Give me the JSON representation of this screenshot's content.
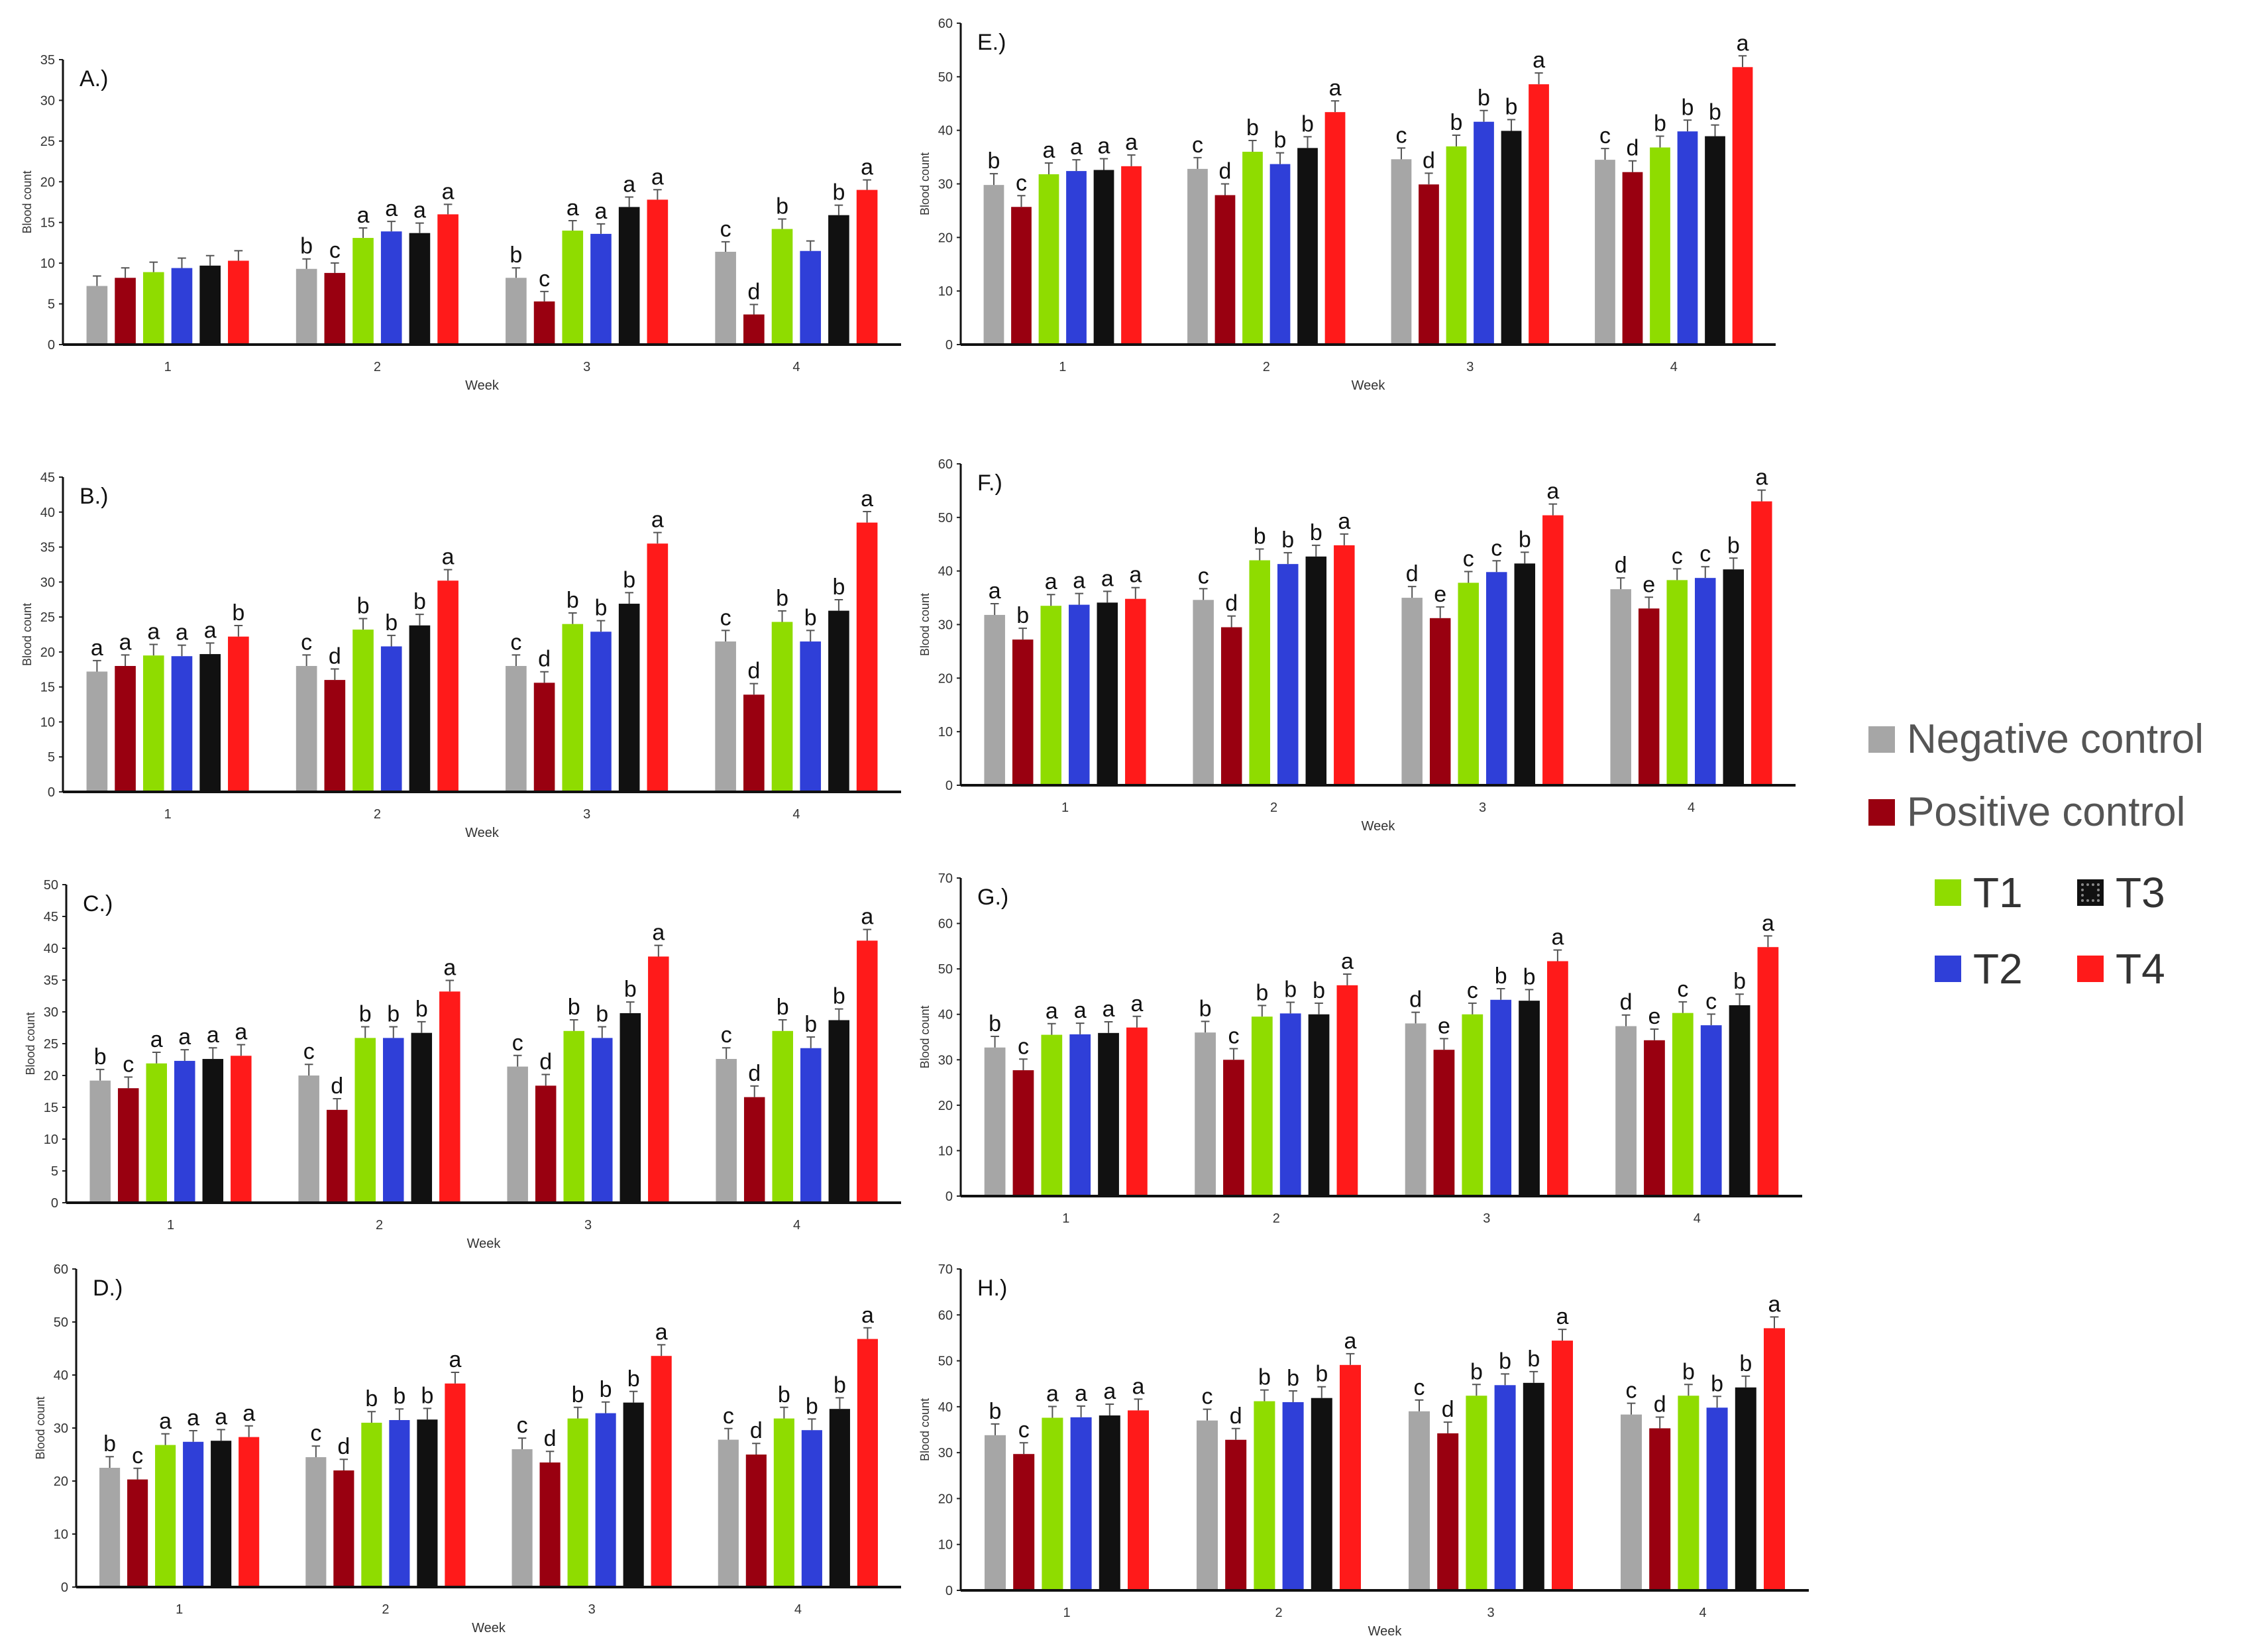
{
  "legend": {
    "items": [
      {
        "key": "neg",
        "label": "Negative control",
        "color": "#a6a6a6"
      },
      {
        "key": "pos",
        "label": "Positive control",
        "color": "#990010"
      },
      {
        "key": "t1",
        "label": "T1",
        "color": "#8fdc00"
      },
      {
        "key": "t2",
        "label": "T2",
        "color": "#2f3fd8"
      },
      {
        "key": "t3",
        "label": "T3",
        "color": "#111111"
      },
      {
        "key": "t4",
        "label": "T4",
        "color": "#ff1a1a"
      }
    ]
  },
  "chart_data": [
    {
      "type": "bar",
      "title": "A.)",
      "xlabel": "Week",
      "ylabel": "Blood count",
      "ylim": [
        0,
        35
      ],
      "yticks": [
        "0",
        "5",
        "10",
        "15",
        "20",
        "25",
        "30",
        "35"
      ],
      "categories": [
        "1",
        "2",
        "3",
        "4"
      ],
      "series": [
        {
          "name": "Negative control",
          "values": [
            7.2,
            9.3,
            8.2,
            11.4
          ],
          "labels": [
            "",
            "b",
            "b",
            "c"
          ]
        },
        {
          "name": "Positive control",
          "values": [
            8.2,
            8.8,
            5.3,
            3.7
          ],
          "labels": [
            "",
            "c",
            "c",
            "d"
          ]
        },
        {
          "name": "T1",
          "values": [
            8.9,
            13.1,
            14.0,
            14.2
          ],
          "labels": [
            "",
            "a",
            "a",
            "b"
          ]
        },
        {
          "name": "T2",
          "values": [
            9.4,
            13.9,
            13.6,
            11.5
          ],
          "labels": [
            "",
            "a",
            "a",
            ""
          ]
        },
        {
          "name": "T3",
          "values": [
            9.7,
            13.7,
            16.9,
            15.9
          ],
          "labels": [
            "",
            "a",
            "a",
            "b"
          ]
        },
        {
          "name": "T4",
          "values": [
            10.3,
            16.0,
            17.8,
            19.0
          ],
          "labels": [
            "",
            "a",
            "a",
            "a"
          ]
        }
      ]
    },
    {
      "type": "bar",
      "title": "B.)",
      "xlabel": "Week",
      "ylabel": "Blood count",
      "ylim": [
        0,
        45
      ],
      "yticks": [
        "0",
        "5",
        "10",
        "15",
        "20",
        "25",
        "30",
        "35",
        "40",
        "45"
      ],
      "categories": [
        "1",
        "2",
        "3",
        "4"
      ],
      "series": [
        {
          "name": "Negative control",
          "values": [
            17.2,
            18.0,
            18.0,
            21.5
          ],
          "labels": [
            "a",
            "c",
            "c",
            "c"
          ]
        },
        {
          "name": "Positive control",
          "values": [
            18.0,
            16.0,
            15.6,
            13.9
          ],
          "labels": [
            "a",
            "d",
            "d",
            "d"
          ]
        },
        {
          "name": "T1",
          "values": [
            19.5,
            23.2,
            24.0,
            24.3
          ],
          "labels": [
            "a",
            "b",
            "b",
            "b"
          ]
        },
        {
          "name": "T2",
          "values": [
            19.4,
            20.8,
            22.9,
            21.5
          ],
          "labels": [
            "a",
            "b",
            "b",
            "b"
          ]
        },
        {
          "name": "T3",
          "values": [
            19.7,
            23.8,
            26.9,
            25.9
          ],
          "labels": [
            "a",
            "b",
            "b",
            "b"
          ]
        },
        {
          "name": "T4",
          "values": [
            22.2,
            30.2,
            35.5,
            38.5
          ],
          "labels": [
            "b",
            "a",
            "a",
            "a"
          ]
        }
      ]
    },
    {
      "type": "bar",
      "title": "C.)",
      "xlabel": "Week",
      "ylabel": "Blood count",
      "ylim": [
        0,
        50
      ],
      "yticks": [
        "0",
        "5",
        "10",
        "15",
        "20",
        "25",
        "30",
        "35",
        "40",
        "45",
        "50"
      ],
      "categories": [
        "1",
        "2",
        "3",
        "4"
      ],
      "series": [
        {
          "name": "Negative control",
          "values": [
            19.2,
            20.0,
            21.4,
            22.6
          ],
          "labels": [
            "b",
            "c",
            "c",
            "c"
          ]
        },
        {
          "name": "Positive control",
          "values": [
            18.0,
            14.6,
            18.4,
            16.6
          ],
          "labels": [
            "c",
            "d",
            "d",
            "d"
          ]
        },
        {
          "name": "T1",
          "values": [
            21.9,
            25.9,
            27.0,
            27.0
          ],
          "labels": [
            "a",
            "b",
            "b",
            "b"
          ]
        },
        {
          "name": "T2",
          "values": [
            22.3,
            25.9,
            25.9,
            24.3
          ],
          "labels": [
            "a",
            "b",
            "b",
            "b"
          ]
        },
        {
          "name": "T3",
          "values": [
            22.6,
            26.7,
            29.8,
            28.7
          ],
          "labels": [
            "a",
            "b",
            "b",
            "b"
          ]
        },
        {
          "name": "T4",
          "values": [
            23.1,
            33.2,
            38.7,
            41.2
          ],
          "labels": [
            "a",
            "a",
            "a",
            "a"
          ]
        }
      ]
    },
    {
      "type": "bar",
      "title": "D.)",
      "xlabel": "Week",
      "ylabel": "Blood count",
      "ylim": [
        0,
        60
      ],
      "yticks": [
        "0",
        "10",
        "20",
        "30",
        "40",
        "50",
        "60"
      ],
      "categories": [
        "1",
        "2",
        "3",
        "4"
      ],
      "series": [
        {
          "name": "Negative control",
          "values": [
            22.5,
            24.5,
            26.0,
            27.8
          ],
          "labels": [
            "b",
            "c",
            "c",
            "c"
          ]
        },
        {
          "name": "Positive control",
          "values": [
            20.3,
            22.0,
            23.5,
            25.0
          ],
          "labels": [
            "c",
            "d",
            "d",
            "d"
          ]
        },
        {
          "name": "T1",
          "values": [
            26.8,
            31.0,
            31.8,
            31.8
          ],
          "labels": [
            "a",
            "b",
            "b",
            "b"
          ]
        },
        {
          "name": "T2",
          "values": [
            27.4,
            31.5,
            32.8,
            29.6
          ],
          "labels": [
            "a",
            "b",
            "b",
            "b"
          ]
        },
        {
          "name": "T3",
          "values": [
            27.6,
            31.6,
            34.8,
            33.6
          ],
          "labels": [
            "a",
            "b",
            "b",
            "b"
          ]
        },
        {
          "name": "T4",
          "values": [
            28.3,
            38.4,
            43.6,
            46.8
          ],
          "labels": [
            "a",
            "a",
            "a",
            "a"
          ]
        }
      ]
    },
    {
      "type": "bar",
      "title": "E.)",
      "xlabel": "Week",
      "ylabel": "Blood count",
      "ylim": [
        0,
        60
      ],
      "yticks": [
        "0",
        "10",
        "20",
        "30",
        "40",
        "50",
        "60"
      ],
      "categories": [
        "1",
        "2",
        "3",
        "4"
      ],
      "series": [
        {
          "name": "Negative control",
          "values": [
            29.8,
            32.8,
            34.6,
            34.5
          ],
          "labels": [
            "b",
            "c",
            "c",
            "c"
          ]
        },
        {
          "name": "Positive control",
          "values": [
            25.7,
            27.9,
            29.9,
            32.2
          ],
          "labels": [
            "c",
            "d",
            "d",
            "d"
          ]
        },
        {
          "name": "T1",
          "values": [
            31.8,
            36.0,
            37.0,
            36.8
          ],
          "labels": [
            "a",
            "b",
            "b",
            "b"
          ]
        },
        {
          "name": "T2",
          "values": [
            32.4,
            33.7,
            41.6,
            39.8
          ],
          "labels": [
            "a",
            "b",
            "b",
            "b"
          ]
        },
        {
          "name": "T3",
          "values": [
            32.6,
            36.7,
            39.9,
            38.9
          ],
          "labels": [
            "a",
            "b",
            "b",
            "b"
          ]
        },
        {
          "name": "T4",
          "values": [
            33.3,
            43.4,
            48.6,
            51.8
          ],
          "labels": [
            "a",
            "a",
            "a",
            "a"
          ]
        }
      ]
    },
    {
      "type": "bar",
      "title": "F.)",
      "xlabel": "Week",
      "ylabel": "Blood count",
      "ylim": [
        0,
        60
      ],
      "yticks": [
        "0",
        "10",
        "20",
        "30",
        "40",
        "50",
        "60"
      ],
      "categories": [
        "1",
        "2",
        "3",
        "4"
      ],
      "series": [
        {
          "name": "Negative control",
          "values": [
            31.8,
            34.6,
            35.0,
            36.6
          ],
          "labels": [
            "a",
            "c",
            "d",
            "d"
          ]
        },
        {
          "name": "Positive control",
          "values": [
            27.2,
            29.5,
            31.2,
            33.0
          ],
          "labels": [
            "b",
            "d",
            "e",
            "e"
          ]
        },
        {
          "name": "T1",
          "values": [
            33.5,
            42.0,
            37.8,
            38.3
          ],
          "labels": [
            "a",
            "b",
            "c",
            "c"
          ]
        },
        {
          "name": "T2",
          "values": [
            33.7,
            41.3,
            39.8,
            38.7
          ],
          "labels": [
            "a",
            "b",
            "c",
            "c"
          ]
        },
        {
          "name": "T3",
          "values": [
            34.1,
            42.7,
            41.4,
            40.3
          ],
          "labels": [
            "a",
            "b",
            "b",
            "b"
          ]
        },
        {
          "name": "T4",
          "values": [
            34.8,
            44.8,
            50.4,
            53.0
          ],
          "labels": [
            "a",
            "a",
            "a",
            "a"
          ]
        }
      ]
    },
    {
      "type": "bar",
      "title": "G.)",
      "xlabel": "",
      "ylabel": "Blood count",
      "ylim": [
        0,
        70
      ],
      "yticks": [
        "0",
        "10",
        "20",
        "30",
        "40",
        "50",
        "60",
        "70"
      ],
      "categories": [
        "1",
        "2",
        "3",
        "4"
      ],
      "series": [
        {
          "name": "Negative control",
          "values": [
            32.7,
            36.0,
            38.0,
            37.4
          ],
          "labels": [
            "b",
            "b",
            "d",
            "d"
          ]
        },
        {
          "name": "Positive control",
          "values": [
            27.7,
            30.0,
            32.2,
            34.3
          ],
          "labels": [
            "c",
            "c",
            "e",
            "e"
          ]
        },
        {
          "name": "T1",
          "values": [
            35.5,
            39.5,
            40.0,
            40.3
          ],
          "labels": [
            "a",
            "b",
            "c",
            "c"
          ]
        },
        {
          "name": "T2",
          "values": [
            35.6,
            40.2,
            43.2,
            37.6
          ],
          "labels": [
            "a",
            "b",
            "b",
            "c"
          ]
        },
        {
          "name": "T3",
          "values": [
            35.9,
            40.0,
            43.0,
            42.0
          ],
          "labels": [
            "a",
            "b",
            "b",
            "b"
          ]
        },
        {
          "name": "T4",
          "values": [
            37.1,
            46.4,
            51.7,
            54.8
          ],
          "labels": [
            "a",
            "a",
            "a",
            "a"
          ]
        }
      ]
    },
    {
      "type": "bar",
      "title": "H.)",
      "xlabel": "Week",
      "ylabel": "Blood count",
      "ylim": [
        0,
        70
      ],
      "yticks": [
        "0",
        "10",
        "20",
        "30",
        "40",
        "50",
        "60",
        "70"
      ],
      "categories": [
        "1",
        "2",
        "3",
        "4"
      ],
      "series": [
        {
          "name": "Negative control",
          "values": [
            33.8,
            37.0,
            39.0,
            38.3
          ],
          "labels": [
            "b",
            "c",
            "c",
            "c"
          ]
        },
        {
          "name": "Positive control",
          "values": [
            29.7,
            32.8,
            34.2,
            35.3
          ],
          "labels": [
            "c",
            "d",
            "d",
            "d"
          ]
        },
        {
          "name": "T1",
          "values": [
            37.6,
            41.2,
            42.4,
            42.4
          ],
          "labels": [
            "a",
            "b",
            "b",
            "b"
          ]
        },
        {
          "name": "T2",
          "values": [
            37.7,
            41.0,
            44.7,
            39.8
          ],
          "labels": [
            "a",
            "b",
            "b",
            "b"
          ]
        },
        {
          "name": "T3",
          "values": [
            38.1,
            41.9,
            45.2,
            44.2
          ],
          "labels": [
            "a",
            "b",
            "b",
            "b"
          ]
        },
        {
          "name": "T4",
          "values": [
            39.2,
            49.1,
            54.4,
            57.1
          ],
          "labels": [
            "a",
            "a",
            "a",
            "a"
          ]
        }
      ]
    }
  ]
}
